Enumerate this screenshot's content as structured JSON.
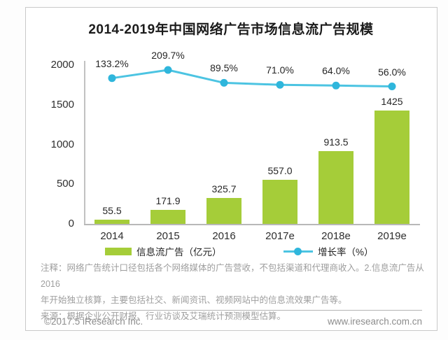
{
  "chart_data": {
    "type": "bar+line",
    "title": "2014-2019年中国网络广告市场信息流广告规模",
    "categories": [
      "2014",
      "2015",
      "2016",
      "2017e",
      "2018e",
      "2019e"
    ],
    "series": [
      {
        "name": "信息流广告（亿元）",
        "type": "bar",
        "values": [
          55.5,
          171.9,
          325.7,
          557.0,
          913.5,
          1425
        ],
        "labels": [
          "55.5",
          "171.9",
          "325.7",
          "557.0",
          "913.5",
          "1425"
        ],
        "color": "#a5cd39"
      },
      {
        "name": "增长率（%）",
        "type": "line",
        "values": [
          133.2,
          209.7,
          89.5,
          71.0,
          64.0,
          56.0
        ],
        "labels": [
          "133.2%",
          "209.7%",
          "89.5%",
          "71.0%",
          "64.0%",
          "56.0%"
        ],
        "color": "#4cc4e2",
        "marker_color": "#2fb6dc"
      }
    ],
    "y_axis": {
      "ticks": [
        0,
        500,
        1000,
        1500,
        2000
      ],
      "min": 0,
      "max": 2000
    },
    "grid": false,
    "legend_position": "bottom"
  },
  "notes": {
    "lines": [
      "注释：网络广告统计口径包括各个网络媒体的广告营收，不包括渠道和代理商收入。2.信息流广告从2016",
      "年开始独立核算，主要包括社交、新闻资讯、视频网站中的信息流效果广告等。",
      "来源：根据企业公开财报、行业访谈及艾瑞统计预测模型估算。"
    ]
  },
  "footer": {
    "copyright": "©2017.5 iResearch Inc.",
    "url": "www.iresearch.com.cn"
  }
}
